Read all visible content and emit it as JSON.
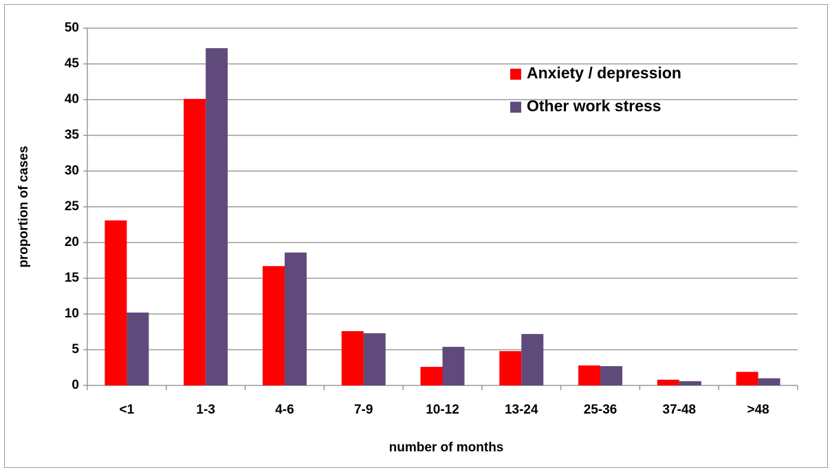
{
  "chart_data": {
    "type": "bar",
    "x_label": "number of months",
    "y_label": "proportion of cases",
    "categories": [
      "<1",
      "1-3",
      "4-6",
      "7-9",
      "10-12",
      "13-24",
      "25-36",
      "37-48",
      ">48"
    ],
    "series": [
      {
        "name": "Anxiety / depression",
        "color": "#ff0000",
        "values": [
          23.1,
          40.1,
          16.7,
          7.6,
          2.6,
          4.8,
          2.8,
          0.8,
          1.9
        ]
      },
      {
        "name": "Other work stress",
        "color": "#604a7b",
        "values": [
          10.2,
          47.2,
          18.6,
          7.3,
          5.4,
          7.2,
          2.7,
          0.6,
          1.0
        ]
      }
    ],
    "ylim": [
      0,
      50
    ],
    "yticks": [
      0,
      5,
      10,
      15,
      20,
      25,
      30,
      35,
      40,
      45,
      50
    ],
    "grid": true,
    "legend": "top-right"
  }
}
